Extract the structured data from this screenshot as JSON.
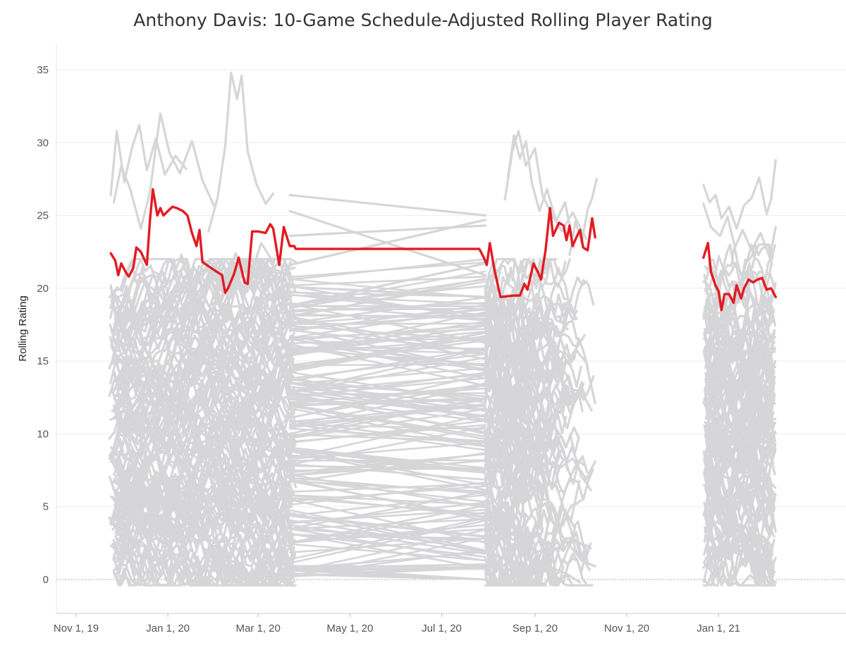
{
  "chart_data": {
    "type": "line",
    "title": "Anthony Davis: 10-Game Schedule-Adjusted Rolling Player Rating",
    "xlabel": "",
    "ylabel": "Rolling Rating",
    "ylim": [
      -2,
      36
    ],
    "xlim": [
      "2019-11-01",
      "2021-03-08"
    ],
    "y_ticks": [
      0,
      5,
      10,
      15,
      20,
      25,
      30,
      35
    ],
    "x_ticks": [
      {
        "date": "2019-11-01",
        "label": "Nov 1, 19"
      },
      {
        "date": "2020-01-01",
        "label": "Jan 1, 20"
      },
      {
        "date": "2020-03-01",
        "label": "Mar 1, 20"
      },
      {
        "date": "2020-05-01",
        "label": "May 1, 20"
      },
      {
        "date": "2020-07-01",
        "label": "Jul 1, 20"
      },
      {
        "date": "2020-09-01",
        "label": "Sep 1, 20"
      },
      {
        "date": "2020-11-01",
        "label": "Nov 1, 20"
      },
      {
        "date": "2021-01-01",
        "label": "Jan 1, 21"
      }
    ],
    "grid": true,
    "legend": "none",
    "colors": {
      "highlight": "#e31b23",
      "others": "#d6d6d8",
      "grid": "#ececec",
      "zero_line": "#aaaaaa"
    },
    "background_series_note": "other players",
    "series": [
      {
        "highlight": true,
        "points": [
          [
            "2019-11-24",
            22.4
          ],
          [
            "2019-11-27",
            21.9
          ],
          [
            "2019-11-29",
            20.9
          ],
          [
            "2019-12-01",
            21.7
          ],
          [
            "2019-12-04",
            21.1
          ],
          [
            "2019-12-06",
            20.8
          ],
          [
            "2019-12-09",
            21.4
          ],
          [
            "2019-12-11",
            22.8
          ],
          [
            "2019-12-14",
            22.5
          ],
          [
            "2019-12-18",
            21.6
          ],
          [
            "2019-12-20",
            24.6
          ],
          [
            "2019-12-22",
            26.8
          ],
          [
            "2019-12-25",
            25.0
          ],
          [
            "2019-12-27",
            25.5
          ],
          [
            "2019-12-29",
            25.0
          ],
          [
            "2020-01-01",
            25.3
          ],
          [
            "2020-01-04",
            25.6
          ],
          [
            "2020-01-07",
            25.5
          ],
          [
            "2020-01-11",
            25.3
          ],
          [
            "2020-01-14",
            25.0
          ],
          [
            "2020-01-17",
            23.8
          ],
          [
            "2020-01-20",
            22.9
          ],
          [
            "2020-01-22",
            24.0
          ],
          [
            "2020-01-24",
            21.8
          ],
          [
            "2020-01-31",
            21.3
          ],
          [
            "2020-02-06",
            20.9
          ],
          [
            "2020-02-08",
            19.7
          ],
          [
            "2020-02-10",
            20.0
          ],
          [
            "2020-02-14",
            21.0
          ],
          [
            "2020-02-17",
            22.1
          ],
          [
            "2020-02-21",
            20.4
          ],
          [
            "2020-02-23",
            20.3
          ],
          [
            "2020-02-26",
            23.9
          ],
          [
            "2020-03-01",
            23.9
          ],
          [
            "2020-03-06",
            23.8
          ],
          [
            "2020-03-09",
            24.4
          ],
          [
            "2020-03-11",
            24.1
          ],
          [
            "2020-03-15",
            21.6
          ],
          [
            "2020-03-18",
            24.2
          ],
          [
            "2020-03-22",
            22.9
          ],
          [
            "2020-03-25",
            22.9
          ],
          [
            "2020-03-26",
            22.7
          ],
          [
            "2020-07-26",
            22.7
          ],
          [
            "2020-07-29",
            22.1
          ],
          [
            "2020-07-31",
            21.6
          ],
          [
            "2020-08-02",
            23.1
          ],
          [
            "2020-08-05",
            21.3
          ],
          [
            "2020-08-09",
            19.4
          ],
          [
            "2020-08-18",
            19.5
          ],
          [
            "2020-08-22",
            19.5
          ],
          [
            "2020-08-25",
            20.3
          ],
          [
            "2020-08-27",
            19.9
          ],
          [
            "2020-08-31",
            21.7
          ],
          [
            "2020-09-03",
            21.1
          ],
          [
            "2020-09-05",
            20.6
          ],
          [
            "2020-09-08",
            22.6
          ],
          [
            "2020-09-11",
            25.5
          ],
          [
            "2020-09-13",
            23.6
          ],
          [
            "2020-09-17",
            24.5
          ],
          [
            "2020-09-20",
            24.3
          ],
          [
            "2020-09-22",
            23.3
          ],
          [
            "2020-09-24",
            24.3
          ],
          [
            "2020-09-26",
            22.9
          ],
          [
            "2020-09-29",
            23.6
          ],
          [
            "2020-10-01",
            24.0
          ],
          [
            "2020-10-03",
            22.8
          ],
          [
            "2020-10-06",
            22.6
          ],
          [
            "2020-10-09",
            24.8
          ],
          [
            "2020-10-11",
            23.5
          ],
          null,
          [
            "2020-12-22",
            22.1
          ],
          [
            "2020-12-25",
            23.1
          ],
          [
            "2020-12-27",
            21.1
          ],
          [
            "2020-12-30",
            20.2
          ],
          [
            "2021-01-01",
            19.8
          ],
          [
            "2021-01-03",
            18.5
          ],
          [
            "2021-01-05",
            19.6
          ],
          [
            "2021-01-08",
            19.6
          ],
          [
            "2021-01-11",
            19.0
          ],
          [
            "2021-01-13",
            20.2
          ],
          [
            "2021-01-16",
            19.3
          ],
          [
            "2021-01-18",
            20.0
          ],
          [
            "2021-01-21",
            20.6
          ],
          [
            "2021-01-24",
            20.4
          ],
          [
            "2021-01-27",
            20.6
          ],
          [
            "2021-01-30",
            20.7
          ],
          [
            "2021-02-02",
            19.9
          ],
          [
            "2021-02-05",
            20.0
          ],
          [
            "2021-02-08",
            19.4
          ]
        ]
      },
      {
        "highlight": false,
        "points": [
          [
            "2019-11-24",
            26.4
          ],
          [
            "2019-11-28",
            30.8
          ],
          [
            "2019-12-03",
            27.3
          ],
          [
            "2019-12-08",
            29.6
          ],
          [
            "2019-12-13",
            31.2
          ],
          [
            "2019-12-18",
            28.1
          ],
          [
            "2019-12-24",
            30.3
          ],
          [
            "2019-12-30",
            27.8
          ],
          [
            "2020-01-06",
            29.1
          ],
          [
            "2020-01-13",
            28.2
          ]
        ]
      },
      {
        "highlight": false,
        "points": [
          [
            "2019-11-26",
            25.9
          ],
          [
            "2019-12-01",
            28.4
          ],
          [
            "2019-12-07",
            26.8
          ],
          [
            "2019-12-14",
            24.1
          ],
          [
            "2019-12-20",
            26.6
          ],
          [
            "2019-12-27",
            32.0
          ],
          [
            "2020-01-02",
            29.3
          ],
          [
            "2020-01-09",
            27.9
          ],
          [
            "2020-01-17",
            30.1
          ],
          [
            "2020-01-24",
            27.4
          ],
          [
            "2020-02-01",
            25.6
          ]
        ]
      },
      {
        "highlight": false,
        "points": [
          [
            "2020-01-28",
            23.9
          ],
          [
            "2020-02-03",
            26.2
          ],
          [
            "2020-02-08",
            29.7
          ],
          [
            "2020-02-12",
            34.8
          ],
          [
            "2020-02-16",
            33.0
          ],
          [
            "2020-02-19",
            34.6
          ],
          [
            "2020-02-23",
            29.4
          ],
          [
            "2020-02-29",
            27.1
          ],
          [
            "2020-03-06",
            25.8
          ],
          [
            "2020-03-11",
            26.5
          ]
        ]
      },
      {
        "highlight": false,
        "points": [
          [
            "2020-03-22",
            26.4
          ],
          [
            "2020-07-30",
            25.0
          ]
        ]
      },
      {
        "highlight": false,
        "points": [
          [
            "2020-03-22",
            25.3
          ],
          [
            "2020-07-30",
            20.9
          ]
        ]
      },
      {
        "highlight": false,
        "points": [
          [
            "2020-03-22",
            23.6
          ],
          [
            "2020-07-30",
            24.3
          ]
        ]
      },
      {
        "highlight": false,
        "points": [
          [
            "2020-03-22",
            21.6
          ],
          [
            "2020-07-30",
            24.7
          ]
        ]
      },
      {
        "highlight": false,
        "points": [
          [
            "2020-03-22",
            20.1
          ],
          [
            "2020-07-30",
            19.4
          ]
        ]
      },
      {
        "highlight": false,
        "points": [
          [
            "2020-03-22",
            18.8
          ],
          [
            "2020-07-30",
            21.7
          ]
        ]
      },
      {
        "highlight": false,
        "points": [
          [
            "2020-08-14",
            27.6
          ],
          [
            "2020-08-18",
            30.5
          ],
          [
            "2020-08-22",
            28.9
          ],
          [
            "2020-08-26",
            30.1
          ],
          [
            "2020-08-30",
            27.2
          ],
          [
            "2020-09-04",
            25.3
          ],
          [
            "2020-09-09",
            26.8
          ],
          [
            "2020-09-15",
            24.6
          ],
          [
            "2020-09-21",
            25.9
          ],
          [
            "2020-09-27",
            22.8
          ]
        ]
      },
      {
        "highlight": false,
        "points": [
          [
            "2020-08-12",
            26.1
          ],
          [
            "2020-08-17",
            29.4
          ],
          [
            "2020-08-21",
            30.8
          ],
          [
            "2020-08-26",
            28.4
          ],
          [
            "2020-09-01",
            29.6
          ],
          [
            "2020-09-06",
            26.4
          ],
          [
            "2020-09-12",
            25.1
          ],
          [
            "2020-09-19",
            23.9
          ],
          [
            "2020-09-26",
            25.2
          ],
          [
            "2020-10-05",
            23.4
          ]
        ]
      },
      {
        "highlight": false,
        "points": [
          [
            "2020-09-24",
            22.3
          ],
          [
            "2020-09-28",
            24.6
          ],
          [
            "2020-10-02",
            23.1
          ],
          [
            "2020-10-06",
            25.4
          ],
          [
            "2020-10-09",
            26.2
          ],
          [
            "2020-10-12",
            27.5
          ]
        ]
      },
      {
        "highlight": false,
        "points": [
          [
            "2020-12-22",
            27.1
          ],
          [
            "2020-12-26",
            25.9
          ],
          [
            "2020-12-30",
            26.4
          ],
          [
            "2021-01-03",
            24.8
          ],
          [
            "2021-01-08",
            25.6
          ],
          [
            "2021-01-13",
            24.1
          ],
          [
            "2021-01-18",
            25.7
          ],
          [
            "2021-01-23",
            26.2
          ],
          [
            "2021-01-28",
            27.6
          ],
          [
            "2021-02-02",
            25.1
          ],
          [
            "2021-02-05",
            26.1
          ],
          [
            "2021-02-08",
            28.8
          ]
        ]
      },
      {
        "highlight": false,
        "points": [
          [
            "2020-12-22",
            25.8
          ],
          [
            "2020-12-27",
            24.2
          ],
          [
            "2021-01-02",
            23.6
          ],
          [
            "2021-01-07",
            24.9
          ],
          [
            "2021-01-12",
            22.8
          ],
          [
            "2021-01-17",
            24.0
          ],
          [
            "2021-01-23",
            22.6
          ],
          [
            "2021-01-29",
            23.8
          ],
          [
            "2021-02-04",
            22.1
          ],
          [
            "2021-02-08",
            24.2
          ]
        ]
      },
      {
        "highlight": false,
        "points": [
          [
            "2019-11-24",
            20.2
          ],
          [
            "2019-11-30",
            16.1
          ],
          [
            "2019-12-08",
            18.9
          ],
          [
            "2019-12-15",
            21.4
          ],
          [
            "2019-12-23",
            17.6
          ],
          [
            "2020-01-01",
            19.8
          ],
          [
            "2020-01-10",
            22.3
          ],
          [
            "2020-01-19",
            18.7
          ],
          [
            "2020-01-28",
            21.0
          ],
          [
            "2020-02-06",
            19.2
          ],
          [
            "2020-02-15",
            22.4
          ],
          [
            "2020-02-24",
            20.6
          ],
          [
            "2020-03-03",
            23.1
          ],
          [
            "2020-03-11",
            21.8
          ]
        ]
      },
      {
        "highlight": false,
        "points": [
          [
            "2020-08-01",
            17.6
          ],
          [
            "2020-08-06",
            18.9
          ],
          [
            "2020-08-12",
            16.2
          ],
          [
            "2020-08-19",
            15.4
          ],
          [
            "2020-08-26",
            17.1
          ],
          [
            "2020-09-03",
            14.0
          ],
          [
            "2020-09-12",
            16.3
          ],
          [
            "2020-09-20",
            14.6
          ],
          [
            "2020-09-28",
            15.8
          ],
          [
            "2020-10-05",
            14.9
          ],
          [
            "2020-10-11",
            12.1
          ]
        ]
      },
      {
        "highlight": false,
        "points": [
          [
            "2020-08-01",
            12.6
          ],
          [
            "2020-08-08",
            11.4
          ],
          [
            "2020-08-15",
            9.8
          ],
          [
            "2020-08-22",
            10.7
          ],
          [
            "2020-08-30",
            8.6
          ],
          [
            "2020-09-08",
            9.9
          ],
          [
            "2020-09-17",
            7.6
          ],
          [
            "2020-09-26",
            8.3
          ],
          [
            "2020-10-05",
            6.9
          ],
          [
            "2020-10-11",
            8.1
          ]
        ]
      },
      {
        "highlight": false,
        "points": [
          [
            "2020-08-01",
            6.1
          ],
          [
            "2020-08-09",
            4.8
          ],
          [
            "2020-08-17",
            3.6
          ],
          [
            "2020-08-25",
            2.4
          ],
          [
            "2020-09-03",
            3.1
          ],
          [
            "2020-09-12",
            1.9
          ],
          [
            "2020-09-22",
            2.6
          ],
          [
            "2020-10-02",
            1.3
          ],
          [
            "2020-10-11",
            0.9
          ]
        ]
      },
      {
        "highlight": false,
        "points": [
          [
            "2020-08-01",
            1.8
          ],
          [
            "2020-08-08",
            0.6
          ],
          [
            "2020-08-15",
            1.4
          ],
          [
            "2020-08-23",
            0.9
          ],
          [
            "2020-09-02",
            0.3
          ],
          [
            "2020-09-12",
            0.8
          ],
          [
            "2020-09-22",
            0.4
          ],
          [
            "2020-10-01",
            -0.2
          ]
        ]
      },
      {
        "highlight": false,
        "points": [
          [
            "2021-01-16",
            -0.4
          ],
          [
            "2021-01-22",
            0.3
          ],
          [
            "2021-01-28",
            -0.3
          ],
          [
            "2021-02-03",
            0.2
          ],
          [
            "2021-02-08",
            -0.2
          ]
        ]
      }
    ]
  }
}
